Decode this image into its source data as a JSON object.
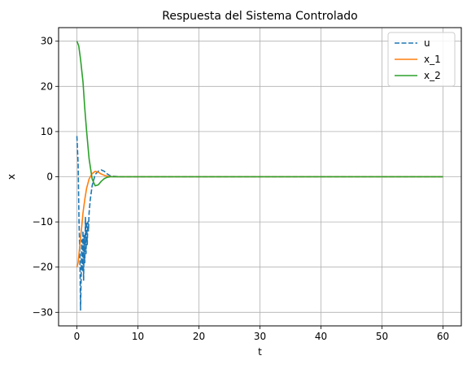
{
  "chart_data": {
    "type": "line",
    "title": "Respuesta del Sistema Controlado",
    "xlabel": "t",
    "ylabel": "x",
    "xlim": [
      -3,
      63
    ],
    "ylim": [
      -33,
      33
    ],
    "xticks": [
      0,
      10,
      20,
      30,
      40,
      50,
      60
    ],
    "yticks": [
      -30,
      -20,
      -10,
      0,
      10,
      20,
      30
    ],
    "grid": true,
    "legend_position": "top-right",
    "series": [
      {
        "name": "u",
        "color": "#1f77b4",
        "dash": true,
        "x": [
          0,
          0.2,
          0.35,
          0.5,
          0.6,
          0.7,
          0.8,
          0.9,
          1.0,
          1.1,
          1.2,
          1.3,
          1.4,
          1.5,
          1.6,
          1.7,
          1.8,
          1.9,
          2.0,
          2.2,
          2.5,
          3.0,
          3.5,
          4.0,
          4.5,
          5.0,
          5.5,
          6.0,
          7.0,
          8.0,
          10,
          20,
          30,
          40,
          50,
          60
        ],
        "values": [
          9,
          3,
          -10,
          -18,
          -29.5,
          -22,
          -14,
          -21,
          -12,
          -23,
          -13,
          -19,
          -9,
          -17,
          -10,
          -15,
          -10,
          -12,
          -8,
          -5,
          -2,
          0.5,
          1.2,
          1.5,
          1.2,
          0.6,
          0.2,
          0.1,
          0,
          0,
          0,
          0,
          0,
          0,
          0,
          0
        ]
      },
      {
        "name": "x_1",
        "color": "#ff7f0e",
        "dash": false,
        "x": [
          0,
          0.2,
          0.5,
          0.8,
          1.0,
          1.3,
          1.6,
          2.0,
          2.5,
          3.0,
          3.5,
          4.0,
          4.5,
          5.0,
          5.5,
          6.0,
          7.0,
          8.0,
          10,
          20,
          30,
          40,
          50,
          60
        ],
        "values": [
          -20,
          -19,
          -15,
          -11,
          -8,
          -5,
          -2.5,
          -0.5,
          0.7,
          1.2,
          1.0,
          0.6,
          0.3,
          0.1,
          0.05,
          0,
          0,
          0,
          0,
          0,
          0,
          0,
          0,
          0
        ]
      },
      {
        "name": "x_2",
        "color": "#2ca02c",
        "dash": false,
        "x": [
          0,
          0.3,
          0.6,
          1.0,
          1.3,
          1.6,
          2.0,
          2.5,
          3.0,
          3.5,
          4.0,
          4.5,
          5.0,
          5.5,
          6.0,
          7.0,
          8.0,
          10,
          20,
          30,
          40,
          50,
          60
        ],
        "values": [
          30,
          29,
          26,
          21,
          15,
          10,
          4,
          -0.5,
          -2,
          -1.8,
          -1,
          -0.4,
          -0.1,
          0,
          0,
          0,
          0,
          0,
          0,
          0,
          0,
          0,
          0
        ]
      }
    ]
  }
}
